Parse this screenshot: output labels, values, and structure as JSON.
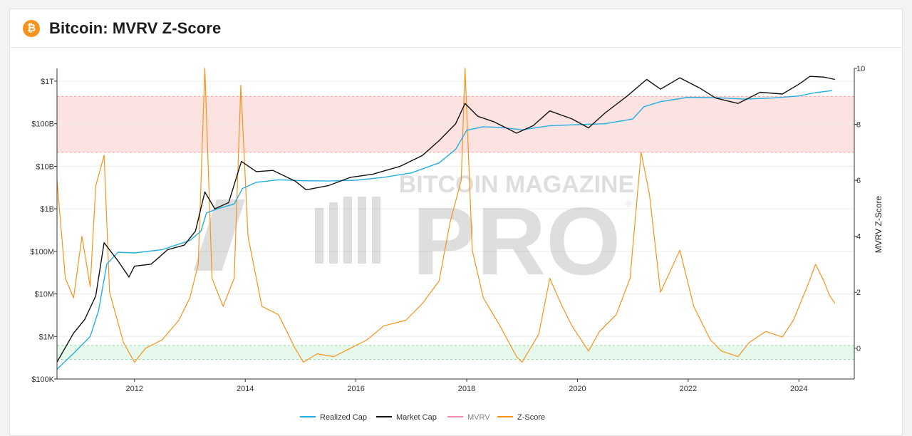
{
  "header": {
    "icon_glyph": "₿",
    "title": "Bitcoin: MVRV Z-Score"
  },
  "watermark": {
    "line1": "BITCOIN MAGAZINE",
    "line2": "PRO",
    "registered": "®"
  },
  "chart_data": {
    "type": "line",
    "title": "Bitcoin: MVRV Z-Score",
    "xlabel": "",
    "ylabel_left": "",
    "ylabel_right": "MVRV Z-Score",
    "x_range": [
      2010.6,
      2025.0
    ],
    "x_ticks": [
      2012,
      2014,
      2016,
      2018,
      2020,
      2022,
      2024
    ],
    "y_left": {
      "scale": "log",
      "range": [
        100000,
        2000000000000
      ],
      "ticks": [
        {
          "value": 100000,
          "label": "$100K"
        },
        {
          "value": 1000000,
          "label": "$1M"
        },
        {
          "value": 10000000,
          "label": "$10M"
        },
        {
          "value": 100000000,
          "label": "$100M"
        },
        {
          "value": 1000000000,
          "label": "$1B"
        },
        {
          "value": 10000000000,
          "label": "$10B"
        },
        {
          "value": 100000000000,
          "label": "$100B"
        },
        {
          "value": 1000000000000,
          "label": "$1T"
        }
      ]
    },
    "y_right": {
      "scale": "linear",
      "range": [
        -1.1,
        10
      ],
      "ticks": [
        0,
        2,
        4,
        6,
        8,
        10
      ]
    },
    "bands": [
      {
        "name": "overvalued",
        "axis": "right",
        "from": 7,
        "to": 9,
        "color": "#fde2e2",
        "border": "#f28c8c"
      },
      {
        "name": "undervalued",
        "axis": "right",
        "from": -0.4,
        "to": 0.1,
        "color": "#e6f8ec",
        "border": "#7ccf96"
      }
    ],
    "legend_position": "bottom-center",
    "series": [
      {
        "name": "Realized Cap",
        "color": "#24aee0",
        "axis": "left",
        "points": [
          [
            2010.6,
            170000
          ],
          [
            2010.9,
            400000
          ],
          [
            2011.2,
            1000000
          ],
          [
            2011.35,
            4000000
          ],
          [
            2011.5,
            50000000
          ],
          [
            2011.7,
            95000000
          ],
          [
            2012.0,
            92000000
          ],
          [
            2012.5,
            110000000
          ],
          [
            2013.0,
            180000000
          ],
          [
            2013.2,
            300000000
          ],
          [
            2013.3,
            800000000
          ],
          [
            2013.5,
            1000000000
          ],
          [
            2013.8,
            1300000000
          ],
          [
            2013.95,
            3000000000
          ],
          [
            2014.2,
            4200000000
          ],
          [
            2014.6,
            4800000000
          ],
          [
            2015.0,
            4600000000
          ],
          [
            2015.5,
            4500000000
          ],
          [
            2016.0,
            4700000000
          ],
          [
            2016.5,
            5500000000
          ],
          [
            2017.0,
            7000000000
          ],
          [
            2017.5,
            12000000000
          ],
          [
            2017.8,
            25000000000
          ],
          [
            2018.0,
            70000000000
          ],
          [
            2018.3,
            85000000000
          ],
          [
            2018.6,
            82000000000
          ],
          [
            2019.0,
            72000000000
          ],
          [
            2019.5,
            90000000000
          ],
          [
            2020.0,
            95000000000
          ],
          [
            2020.5,
            100000000000
          ],
          [
            2021.0,
            130000000000
          ],
          [
            2021.2,
            250000000000
          ],
          [
            2021.5,
            330000000000
          ],
          [
            2022.0,
            420000000000
          ],
          [
            2022.5,
            410000000000
          ],
          [
            2023.0,
            380000000000
          ],
          [
            2023.5,
            400000000000
          ],
          [
            2024.0,
            450000000000
          ],
          [
            2024.3,
            540000000000
          ],
          [
            2024.6,
            600000000000
          ]
        ]
      },
      {
        "name": "Market Cap",
        "color": "#111111",
        "axis": "left",
        "points": [
          [
            2010.6,
            250000
          ],
          [
            2010.9,
            1200000
          ],
          [
            2011.1,
            2500000
          ],
          [
            2011.3,
            9000000
          ],
          [
            2011.45,
            160000000
          ],
          [
            2011.7,
            60000000
          ],
          [
            2011.9,
            25000000
          ],
          [
            2012.0,
            45000000
          ],
          [
            2012.3,
            50000000
          ],
          [
            2012.6,
            110000000
          ],
          [
            2012.9,
            140000000
          ],
          [
            2013.1,
            300000000
          ],
          [
            2013.27,
            2500000000
          ],
          [
            2013.45,
            1000000000
          ],
          [
            2013.7,
            1400000000
          ],
          [
            2013.93,
            13000000000
          ],
          [
            2014.2,
            7500000000
          ],
          [
            2014.5,
            8000000000
          ],
          [
            2014.9,
            4500000000
          ],
          [
            2015.1,
            2800000000
          ],
          [
            2015.5,
            3500000000
          ],
          [
            2015.9,
            5500000000
          ],
          [
            2016.3,
            6500000000
          ],
          [
            2016.8,
            10000000000
          ],
          [
            2017.2,
            18000000000
          ],
          [
            2017.5,
            40000000000
          ],
          [
            2017.8,
            100000000000
          ],
          [
            2017.97,
            300000000000
          ],
          [
            2018.2,
            150000000000
          ],
          [
            2018.5,
            110000000000
          ],
          [
            2018.9,
            60000000000
          ],
          [
            2019.2,
            90000000000
          ],
          [
            2019.5,
            200000000000
          ],
          [
            2019.9,
            130000000000
          ],
          [
            2020.2,
            80000000000
          ],
          [
            2020.5,
            180000000000
          ],
          [
            2020.9,
            450000000000
          ],
          [
            2021.25,
            1100000000000
          ],
          [
            2021.5,
            650000000000
          ],
          [
            2021.85,
            1200000000000
          ],
          [
            2022.2,
            700000000000
          ],
          [
            2022.5,
            400000000000
          ],
          [
            2022.9,
            300000000000
          ],
          [
            2023.3,
            550000000000
          ],
          [
            2023.7,
            500000000000
          ],
          [
            2024.0,
            850000000000
          ],
          [
            2024.2,
            1300000000000
          ],
          [
            2024.45,
            1250000000000
          ],
          [
            2024.65,
            1100000000000
          ]
        ]
      },
      {
        "name": "MVRV",
        "color": "#f48fb1",
        "axis": "right",
        "visible": false,
        "points": []
      },
      {
        "name": "Z-Score",
        "color": "#f7931a",
        "axis": "right",
        "points": [
          [
            2010.6,
            6.0
          ],
          [
            2010.75,
            2.5
          ],
          [
            2010.9,
            1.8
          ],
          [
            2011.05,
            4.0
          ],
          [
            2011.2,
            2.2
          ],
          [
            2011.3,
            5.8
          ],
          [
            2011.45,
            6.9
          ],
          [
            2011.55,
            2.0
          ],
          [
            2011.8,
            0.2
          ],
          [
            2012.0,
            -0.5
          ],
          [
            2012.2,
            0.0
          ],
          [
            2012.5,
            0.3
          ],
          [
            2012.8,
            1.0
          ],
          [
            2013.0,
            1.8
          ],
          [
            2013.15,
            3.0
          ],
          [
            2013.27,
            10.0
          ],
          [
            2013.4,
            2.5
          ],
          [
            2013.6,
            1.5
          ],
          [
            2013.8,
            2.5
          ],
          [
            2013.92,
            9.4
          ],
          [
            2014.05,
            4.0
          ],
          [
            2014.3,
            1.5
          ],
          [
            2014.6,
            1.2
          ],
          [
            2014.9,
            0.0
          ],
          [
            2015.05,
            -0.5
          ],
          [
            2015.3,
            -0.2
          ],
          [
            2015.6,
            -0.3
          ],
          [
            2015.9,
            0.0
          ],
          [
            2016.2,
            0.3
          ],
          [
            2016.5,
            0.8
          ],
          [
            2016.9,
            1.0
          ],
          [
            2017.2,
            1.6
          ],
          [
            2017.5,
            2.4
          ],
          [
            2017.7,
            4.5
          ],
          [
            2017.9,
            6.0
          ],
          [
            2017.97,
            10.0
          ],
          [
            2018.1,
            3.5
          ],
          [
            2018.3,
            1.8
          ],
          [
            2018.6,
            0.8
          ],
          [
            2018.9,
            -0.3
          ],
          [
            2019.0,
            -0.5
          ],
          [
            2019.3,
            0.5
          ],
          [
            2019.5,
            2.5
          ],
          [
            2019.7,
            1.6
          ],
          [
            2019.9,
            0.8
          ],
          [
            2020.2,
            -0.1
          ],
          [
            2020.4,
            0.6
          ],
          [
            2020.7,
            1.2
          ],
          [
            2020.95,
            2.5
          ],
          [
            2021.15,
            7.0
          ],
          [
            2021.3,
            5.5
          ],
          [
            2021.5,
            2.0
          ],
          [
            2021.85,
            3.5
          ],
          [
            2022.1,
            1.5
          ],
          [
            2022.4,
            0.3
          ],
          [
            2022.6,
            -0.1
          ],
          [
            2022.9,
            -0.3
          ],
          [
            2023.1,
            0.2
          ],
          [
            2023.4,
            0.6
          ],
          [
            2023.7,
            0.4
          ],
          [
            2023.9,
            1.0
          ],
          [
            2024.15,
            2.2
          ],
          [
            2024.3,
            3.0
          ],
          [
            2024.45,
            2.4
          ],
          [
            2024.55,
            1.9
          ],
          [
            2024.65,
            1.6
          ]
        ]
      }
    ]
  }
}
